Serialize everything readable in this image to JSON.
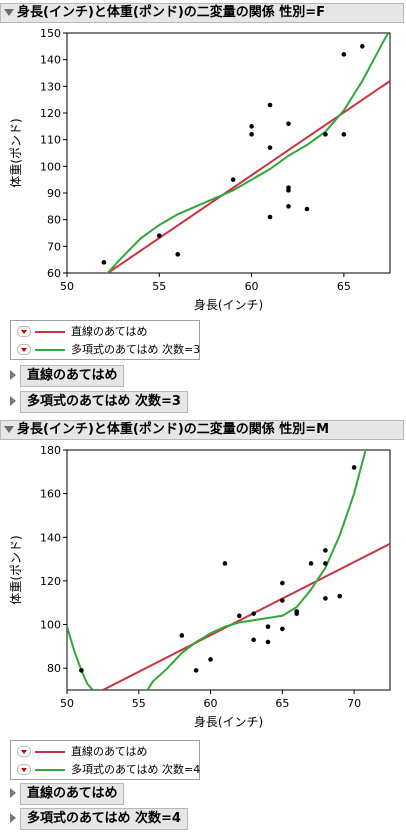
{
  "colors": {
    "linear": "#cc3340",
    "poly": "#2fa83a",
    "point": "#000000",
    "header_bg": "#e6e6e6"
  },
  "sections": [
    {
      "title": "身長(インチ)と体重(ポンド)の二変量の関係 性別=F",
      "legend": [
        "直線のあてはめ",
        "多項式のあてはめ 次数=3"
      ],
      "subs": [
        "直線のあてはめ",
        "多項式のあてはめ 次数=3"
      ]
    },
    {
      "title": "身長(インチ)と体重(ポンド)の二変量の関係 性別=M",
      "legend": [
        "直線のあてはめ",
        "多項式のあてはめ 次数=4"
      ],
      "subs": [
        "直線のあてはめ",
        "多項式のあてはめ 次数=4"
      ]
    }
  ],
  "chart_data": [
    {
      "type": "scatter",
      "xlabel": "身長(インチ)",
      "ylabel": "体重(ポンド)",
      "xlim": [
        50,
        67.5
      ],
      "ylim": [
        60,
        150
      ],
      "xticks": [
        50,
        55,
        60,
        65
      ],
      "yticks": [
        60,
        70,
        80,
        90,
        100,
        110,
        120,
        130,
        140,
        150
      ],
      "points": [
        [
          52,
          64
        ],
        [
          55,
          74
        ],
        [
          56,
          67
        ],
        [
          59,
          95
        ],
        [
          60,
          115
        ],
        [
          60,
          112
        ],
        [
          61,
          123
        ],
        [
          61,
          107
        ],
        [
          61,
          81
        ],
        [
          62,
          116
        ],
        [
          62,
          92
        ],
        [
          62,
          91
        ],
        [
          62,
          85
        ],
        [
          63,
          84
        ],
        [
          64,
          112
        ],
        [
          65,
          142
        ],
        [
          65,
          112
        ],
        [
          66,
          145
        ]
      ],
      "fits": {
        "linear": [
          [
            52,
            59
          ],
          [
            67.5,
            132
          ]
        ],
        "poly": [
          [
            52.2,
            60
          ],
          [
            53,
            66
          ],
          [
            54,
            73
          ],
          [
            55,
            78
          ],
          [
            56,
            82
          ],
          [
            57,
            85
          ],
          [
            58,
            88
          ],
          [
            59,
            91
          ],
          [
            60,
            95
          ],
          [
            61,
            99
          ],
          [
            62,
            104
          ],
          [
            63,
            108
          ],
          [
            64,
            113
          ],
          [
            65,
            121
          ],
          [
            66,
            132
          ],
          [
            67,
            145
          ],
          [
            67.4,
            150
          ]
        ]
      }
    },
    {
      "type": "scatter",
      "xlabel": "身長(インチ)",
      "ylabel": "体重(ポンド)",
      "xlim": [
        50,
        72.5
      ],
      "ylim": [
        70,
        180
      ],
      "xticks": [
        50,
        55,
        60,
        65,
        70
      ],
      "yticks": [
        80,
        100,
        120,
        140,
        160,
        180
      ],
      "points": [
        [
          51,
          79
        ],
        [
          58,
          95
        ],
        [
          59,
          79
        ],
        [
          60,
          84
        ],
        [
          61,
          128
        ],
        [
          62,
          104
        ],
        [
          63,
          105
        ],
        [
          63,
          93
        ],
        [
          64,
          99
        ],
        [
          64,
          92
        ],
        [
          65,
          119
        ],
        [
          65,
          111
        ],
        [
          65,
          98
        ],
        [
          66,
          106
        ],
        [
          66,
          105
        ],
        [
          67,
          128
        ],
        [
          68,
          134
        ],
        [
          68,
          128
        ],
        [
          68,
          112
        ],
        [
          69,
          113
        ],
        [
          70,
          172
        ]
      ],
      "fits": {
        "linear": [
          [
            52.5,
            70
          ],
          [
            72.5,
            137
          ]
        ],
        "poly": [
          [
            50,
            99
          ],
          [
            50.5,
            88
          ],
          [
            51,
            79
          ],
          [
            51.4,
            73
          ],
          [
            51.8,
            70
          ]
        ],
        "poly2": [
          [
            55.6,
            70
          ],
          [
            56,
            74
          ],
          [
            57,
            80
          ],
          [
            58,
            87
          ],
          [
            59,
            92
          ],
          [
            60,
            96
          ],
          [
            61,
            99
          ],
          [
            62,
            101
          ],
          [
            63,
            102
          ],
          [
            64,
            103
          ],
          [
            65,
            104
          ],
          [
            66,
            108
          ],
          [
            67,
            116
          ],
          [
            68,
            126
          ],
          [
            69,
            141
          ],
          [
            70,
            160
          ],
          [
            70.8,
            180
          ]
        ]
      }
    }
  ]
}
